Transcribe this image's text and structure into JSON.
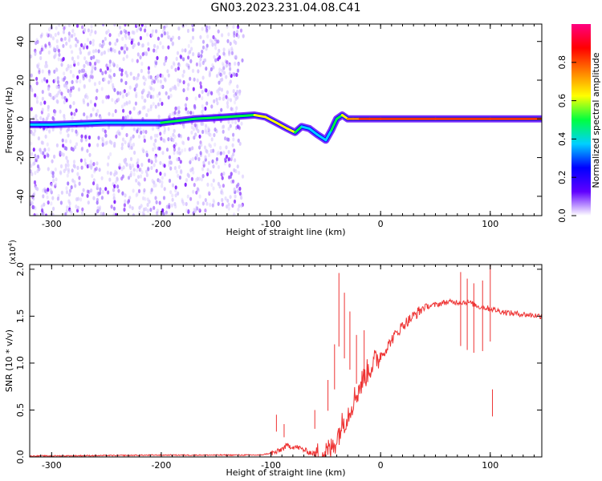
{
  "page": {
    "title": "GN03.2023.231.04.08.C41"
  },
  "chart_data": [
    {
      "type": "heatmap",
      "xlabel": "Height of straight line (km)",
      "ylabel": "Frequency (Hz)",
      "xlim": [
        -320,
        147
      ],
      "ylim": [
        -50,
        49
      ],
      "xticks": [
        -300,
        -200,
        -100,
        0,
        100
      ],
      "yticks": [
        -40,
        -20,
        0,
        20,
        40
      ],
      "grid": false,
      "colorbar": {
        "label": "Normalized spectral amplitude",
        "range": [
          0,
          1
        ],
        "ticks": [
          "0.0",
          "0.2",
          "0.4",
          "0.6",
          "0.8"
        ],
        "colors": [
          "#ffffff",
          "#6000ff",
          "#0000ff",
          "#00d0ff",
          "#00ff40",
          "#ffff00",
          "#ff8000",
          "#ff0000",
          "#ff0080"
        ]
      },
      "ridge": {
        "x": [
          -320,
          -300,
          -250,
          -200,
          -170,
          -140,
          -115,
          -105,
          -95,
          -85,
          -78,
          -72,
          -65,
          -58,
          -50,
          -45,
          -40,
          -35,
          -30,
          -25,
          -20,
          -10,
          0,
          50,
          100,
          147
        ],
        "freq": [
          -3,
          -3,
          -2,
          -2,
          0,
          1,
          2,
          1,
          -2,
          -5,
          -7,
          -4,
          -5,
          -8,
          -11,
          -6,
          0,
          2,
          0,
          0,
          0,
          0,
          0,
          0,
          0,
          0
        ],
        "amplitude": [
          0.3,
          0.3,
          0.4,
          0.4,
          0.5,
          0.55,
          0.6,
          0.6,
          0.6,
          0.65,
          0.7,
          0.35,
          0.4,
          0.35,
          0.3,
          0.4,
          0.5,
          0.65,
          0.75,
          0.8,
          0.85,
          0.85,
          0.85,
          0.85,
          0.85,
          0.85
        ]
      },
      "noise_extent_x": [
        -320,
        -125
      ]
    },
    {
      "type": "line",
      "xlabel": "Height of straight line (km)",
      "ylabel": "SNR (10 * v/v)",
      "y_multiplier": "(x10",
      "y_multiplier_exp": "4",
      "y_multiplier_close": ")",
      "xlim": [
        -320,
        147
      ],
      "ylim": [
        0,
        2.05
      ],
      "xticks": [
        -300,
        -200,
        -100,
        0,
        100
      ],
      "yticks": [
        "0.0",
        "0.5",
        "1.0",
        "1.5",
        "2.0"
      ],
      "grid": false,
      "series": [
        {
          "color": "#ee3333",
          "x": [
            -320,
            -250,
            -200,
            -150,
            -110,
            -95,
            -85,
            -75,
            -65,
            -55,
            -45,
            -40,
            -35,
            -30,
            -25,
            -20,
            -15,
            -10,
            -5,
            0,
            5,
            10,
            20,
            30,
            40,
            50,
            60,
            70,
            80,
            90,
            100,
            110,
            120,
            130,
            147
          ],
          "y": [
            0.01,
            0.015,
            0.02,
            0.02,
            0.02,
            0.05,
            0.12,
            0.1,
            0.05,
            0.02,
            0.08,
            0.2,
            0.35,
            0.45,
            0.6,
            0.72,
            0.85,
            0.95,
            1.02,
            1.08,
            1.15,
            1.25,
            1.4,
            1.5,
            1.6,
            1.62,
            1.65,
            1.65,
            1.65,
            1.6,
            1.58,
            1.55,
            1.53,
            1.52,
            1.5
          ]
        }
      ],
      "spikes": [
        {
          "x": -95,
          "y": 0.45
        },
        {
          "x": -88,
          "y": 0.35
        },
        {
          "x": -60,
          "y": 0.5
        },
        {
          "x": -48,
          "y": 0.82
        },
        {
          "x": -42,
          "y": 1.2
        },
        {
          "x": -38,
          "y": 1.96
        },
        {
          "x": -33,
          "y": 1.75
        },
        {
          "x": -28,
          "y": 1.55
        },
        {
          "x": -22,
          "y": 1.3
        },
        {
          "x": -15,
          "y": 1.35
        },
        {
          "x": 73,
          "y": 1.97
        },
        {
          "x": 79,
          "y": 1.9
        },
        {
          "x": 85,
          "y": 1.85
        },
        {
          "x": 93,
          "y": 1.88
        },
        {
          "x": 100,
          "y": 2.05
        },
        {
          "x": 102,
          "y": 0.72
        }
      ]
    }
  ]
}
